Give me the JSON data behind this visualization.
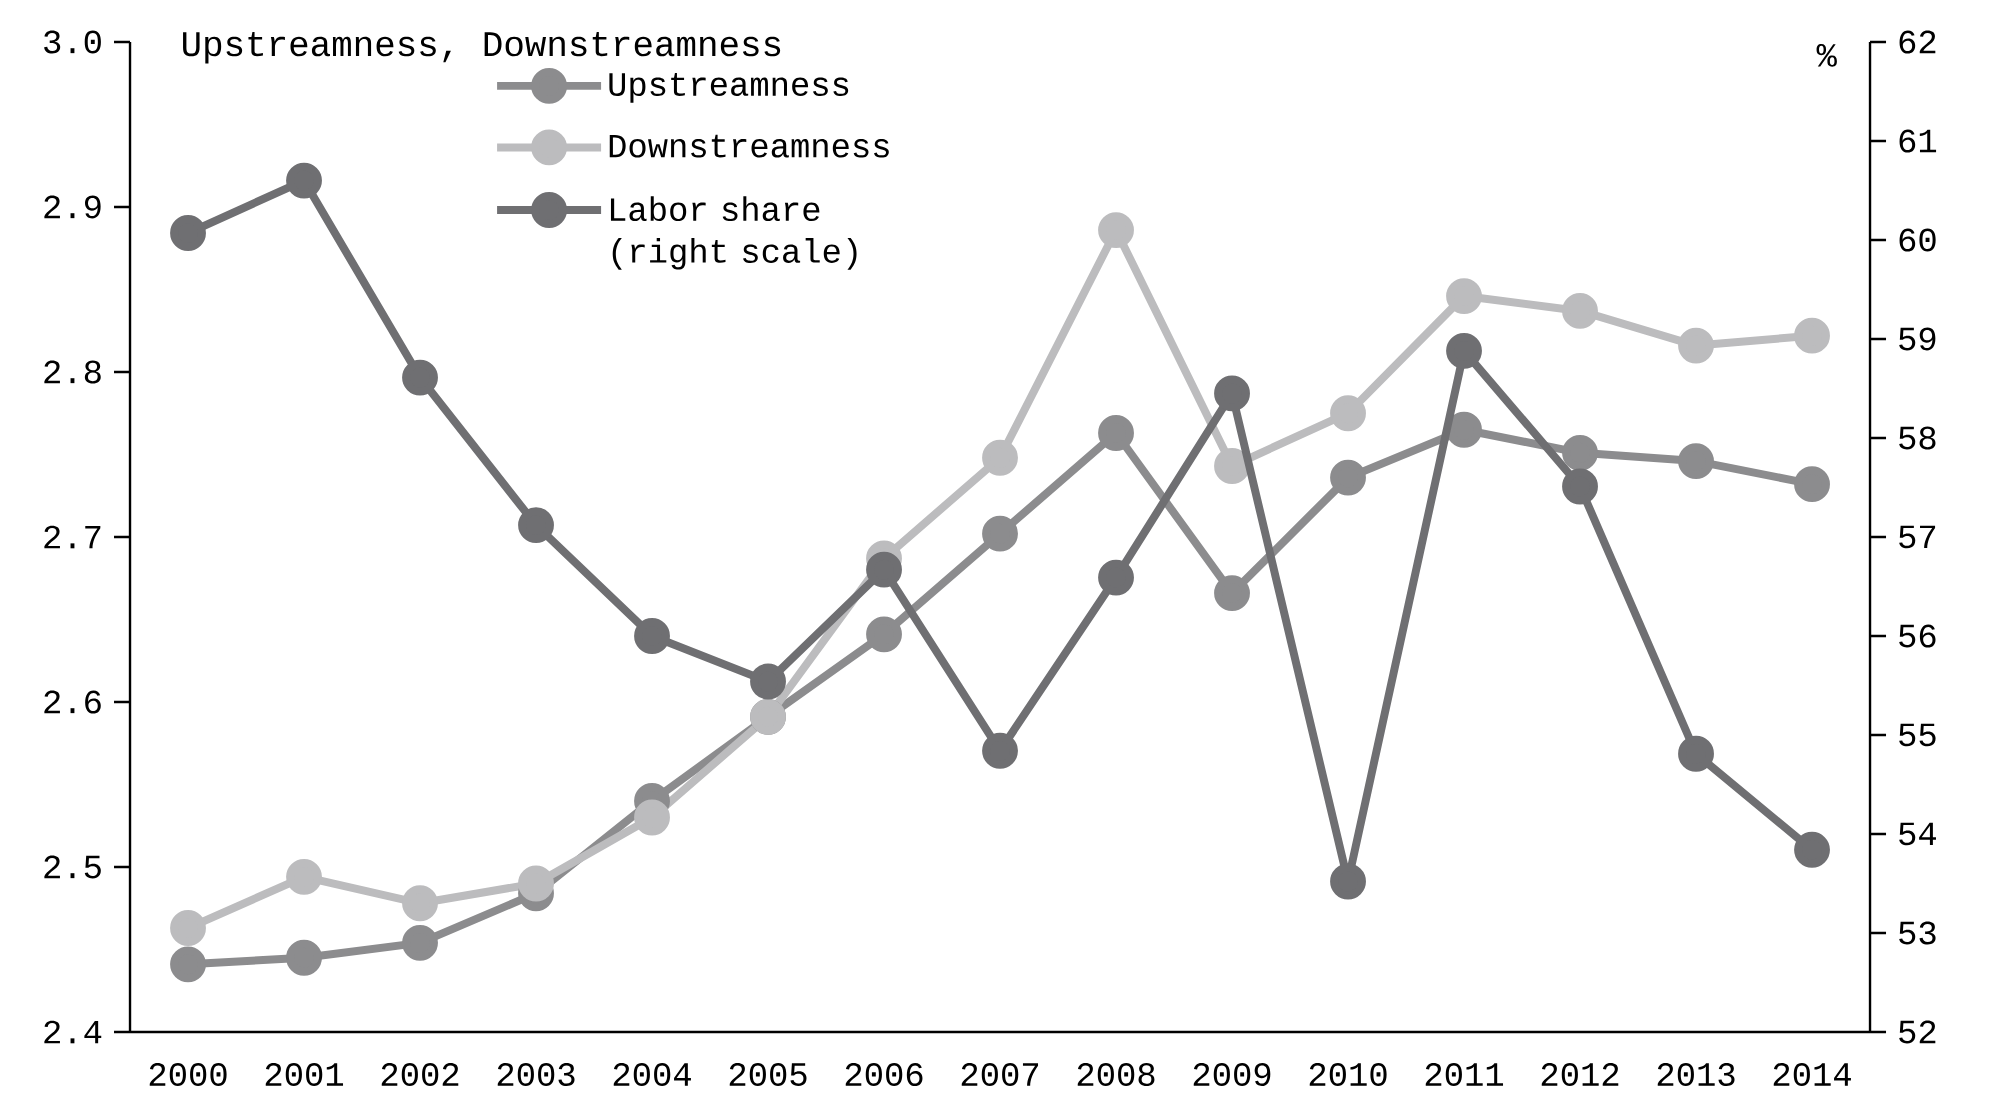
{
  "chart_data": {
    "type": "line",
    "title": "Upstreamness, Downstreamness",
    "y2label": "%",
    "categories": [
      "2000",
      "2001",
      "2002",
      "2003",
      "2004",
      "2005",
      "2006",
      "2007",
      "2008",
      "2009",
      "2010",
      "2011",
      "2012",
      "2013",
      "2014"
    ],
    "series": [
      {
        "name": "Upstreamness",
        "color": "#8c8c8e",
        "values": [
          2.441,
          2.445,
          2.454,
          2.484,
          2.54,
          2.591,
          2.641,
          2.702,
          2.763,
          2.666,
          2.736,
          2.765,
          2.751,
          2.746,
          2.732
        ]
      },
      {
        "name": "Downstreamness",
        "color": "#bcbcbe",
        "values": [
          2.463,
          2.494,
          2.478,
          2.49,
          2.53,
          2.591,
          2.687,
          2.748,
          2.886,
          2.743,
          2.775,
          2.846,
          2.837,
          2.816,
          2.822
        ]
      },
      {
        "name": "Labor share (right scale)",
        "color": "#6f6f72",
        "axis": "y2",
        "values": [
          60.07,
          60.6,
          58.61,
          57.12,
          56.0,
          55.54,
          56.67,
          54.84,
          56.59,
          58.45,
          53.52,
          58.88,
          57.51,
          54.81,
          53.84
        ]
      }
    ],
    "ylim": [
      2.4,
      3.0
    ],
    "yticks": [
      {
        "value": 2.4,
        "label": "2.4"
      },
      {
        "value": 2.5,
        "label": "2.5"
      },
      {
        "value": 2.6,
        "label": "2.6"
      },
      {
        "value": 2.7,
        "label": "2.7"
      },
      {
        "value": 2.8,
        "label": "2.8"
      },
      {
        "value": 2.9,
        "label": "2.9"
      },
      {
        "value": 3.0,
        "label": "3.0"
      }
    ],
    "y2lim": [
      52,
      62
    ],
    "y2ticks": [
      52,
      53,
      54,
      55,
      56,
      57,
      58,
      59,
      60,
      61,
      62
    ],
    "grid": false,
    "legend": "top",
    "marker": "circle",
    "line_style": "solid"
  }
}
